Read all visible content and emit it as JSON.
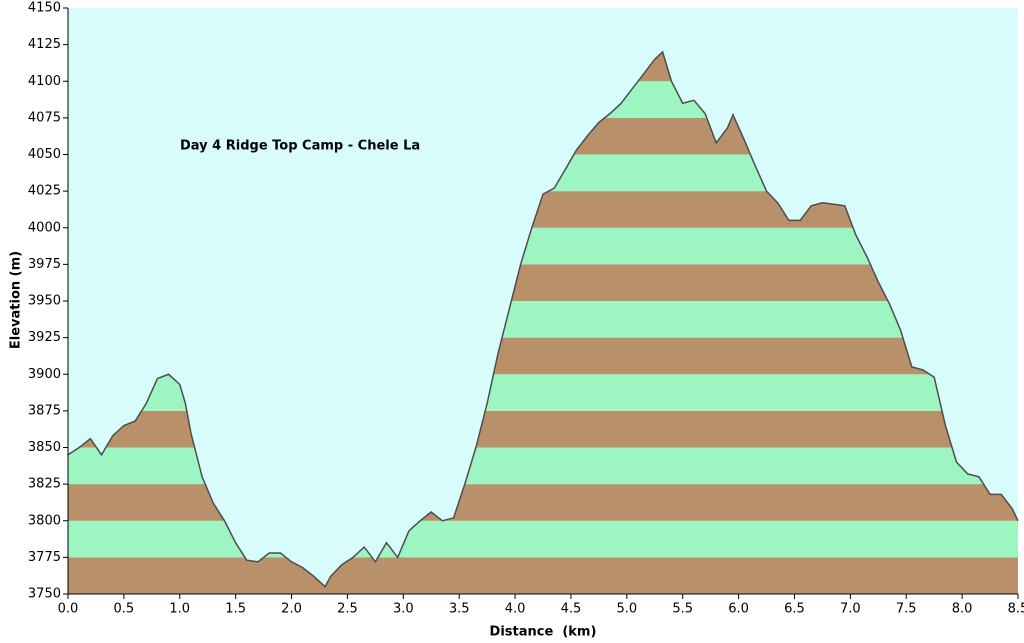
{
  "chart_data": {
    "type": "area",
    "annotation": "Day 4 Ridge Top Camp - Chele La",
    "x_label": "Distance  (km)",
    "y_label": "Elevation (m)",
    "background": "#d7fcfb",
    "band_colors": [
      "#b8916a",
      "#9df5c1"
    ],
    "line_color": "#4d4d4d",
    "xlim": [
      0,
      8.5
    ],
    "ylim": [
      3750,
      4150
    ],
    "xticks": [
      {
        "value": 0,
        "label": "0.0"
      },
      0.5,
      {
        "value": 1,
        "label": "1.0"
      },
      1.5,
      {
        "value": 2,
        "label": "2.0"
      },
      2.5,
      {
        "value": 3,
        "label": "3.0"
      },
      3.5,
      {
        "value": 4,
        "label": "4.0"
      },
      4.5,
      {
        "value": 5,
        "label": "5.0"
      },
      5.5,
      {
        "value": 6,
        "label": "6.0"
      },
      6.5,
      {
        "value": 7,
        "label": "7.0"
      },
      7.5,
      {
        "value": 8,
        "label": "8.0"
      },
      8.5
    ],
    "yticks": [
      3750,
      3775,
      3800,
      3825,
      3850,
      3875,
      3900,
      3925,
      3950,
      3975,
      4000,
      4025,
      4050,
      4075,
      4100,
      4125,
      4150
    ],
    "x": [
      0.0,
      0.1,
      0.2,
      0.3,
      0.4,
      0.5,
      0.6,
      0.7,
      0.8,
      0.9,
      1.0,
      1.05,
      1.1,
      1.2,
      1.3,
      1.4,
      1.5,
      1.6,
      1.7,
      1.8,
      1.9,
      2.0,
      2.1,
      2.2,
      2.3,
      2.35,
      2.45,
      2.55,
      2.65,
      2.75,
      2.85,
      2.95,
      3.05,
      3.15,
      3.25,
      3.35,
      3.45,
      3.55,
      3.65,
      3.75,
      3.85,
      3.95,
      4.05,
      4.15,
      4.25,
      4.35,
      4.45,
      4.55,
      4.65,
      4.75,
      4.85,
      4.95,
      5.05,
      5.15,
      5.25,
      5.32,
      5.4,
      5.5,
      5.6,
      5.7,
      5.8,
      5.9,
      5.95,
      6.05,
      6.15,
      6.25,
      6.35,
      6.45,
      6.55,
      6.65,
      6.75,
      6.85,
      6.95,
      7.05,
      7.15,
      7.25,
      7.35,
      7.45,
      7.55,
      7.65,
      7.75,
      7.85,
      7.95,
      8.05,
      8.15,
      8.25,
      8.35,
      8.45,
      8.5
    ],
    "values": [
      3845,
      3850,
      3856,
      3845,
      3858,
      3865,
      3868,
      3880,
      3897,
      3900,
      3893,
      3880,
      3860,
      3830,
      3812,
      3800,
      3785,
      3773,
      3772,
      3778,
      3778,
      3772,
      3768,
      3762,
      3755,
      3762,
      3770,
      3775,
      3782,
      3772,
      3785,
      3775,
      3793,
      3800,
      3806,
      3800,
      3802,
      3825,
      3850,
      3880,
      3915,
      3945,
      3975,
      4000,
      4023,
      4027,
      4040,
      4053,
      4063,
      4072,
      4078,
      4085,
      4095,
      4105,
      4115,
      4120,
      4100,
      4085,
      4087,
      4078,
      4058,
      4068,
      4077,
      4060,
      4042,
      4025,
      4017,
      4005,
      4005,
      4015,
      4017,
      4016,
      4015,
      3995,
      3980,
      3963,
      3948,
      3930,
      3905,
      3903,
      3898,
      3865,
      3840,
      3832,
      3830,
      3818,
      3818,
      3808,
      3800
    ]
  }
}
